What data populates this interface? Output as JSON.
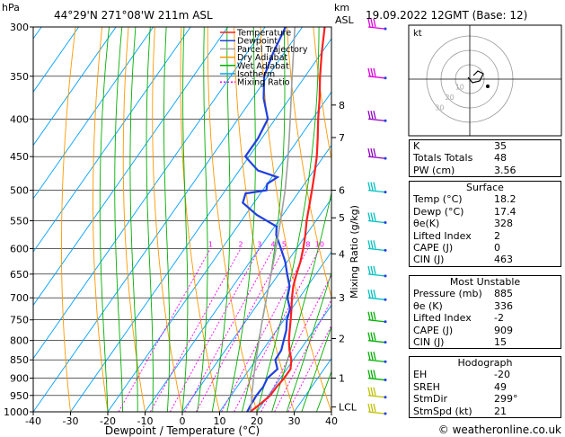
{
  "header": {
    "location": "44°29'N  271°08'W  211m  ASL",
    "datetime": "19.09.2022  12GMT  (Base: 12)",
    "p_unit": "hPa",
    "km_unit": "km",
    "asl_unit": "ASL"
  },
  "footer": {
    "copyright": "© weatheronline.co.uk"
  },
  "hodograph": {
    "kt_label": "kt",
    "ring_labels": [
      "10",
      "20",
      "30"
    ]
  },
  "indices": {
    "rows": [
      {
        "label": "K",
        "value": "35"
      },
      {
        "label": "Totals Totals",
        "value": "48"
      },
      {
        "label": "PW (cm)",
        "value": "3.56"
      }
    ]
  },
  "surface": {
    "title": "Surface",
    "rows": [
      {
        "label": "Temp (°C)",
        "value": "18.2"
      },
      {
        "label": "Dewp (°C)",
        "value": "17.4"
      },
      {
        "label": "θe(K)",
        "value": "328"
      },
      {
        "label": "Lifted Index",
        "value": "2"
      },
      {
        "label": "CAPE (J)",
        "value": "0"
      },
      {
        "label": "CIN (J)",
        "value": "463"
      }
    ]
  },
  "most_unstable": {
    "title": "Most Unstable",
    "rows": [
      {
        "label": "Pressure (mb)",
        "value": "885"
      },
      {
        "label": "θe (K)",
        "value": "336"
      },
      {
        "label": "Lifted Index",
        "value": "-2"
      },
      {
        "label": "CAPE (J)",
        "value": "909"
      },
      {
        "label": "CIN (J)",
        "value": "15"
      }
    ]
  },
  "hodo_params": {
    "title": "Hodograph",
    "rows": [
      {
        "label": "EH",
        "value": "-20"
      },
      {
        "label": "SREH",
        "value": "49"
      },
      {
        "label": "StmDir",
        "value": "299°"
      },
      {
        "label": "StmSpd (kt)",
        "value": "21"
      }
    ]
  },
  "colors": {
    "temperature": "#ff2020",
    "dewpoint": "#2040e0",
    "parcel": "#a0a0a0",
    "dry_adiabat": "#ff9900",
    "wet_adiabat": "#00b000",
    "isotherm": "#00a0ff",
    "mixing_ratio": "#ff00ff"
  },
  "chart_data": {
    "type": "line",
    "xlabel": "Dewpoint / Temperature (°C)",
    "ylabel_right": "Mixing Ratio (g/kg)",
    "x_ticks": [
      "-40",
      "-30",
      "-20",
      "-10",
      "0",
      "10",
      "20",
      "30",
      "40"
    ],
    "p_ticks": [
      "300",
      "350",
      "400",
      "450",
      "500",
      "550",
      "600",
      "650",
      "700",
      "750",
      "800",
      "850",
      "900",
      "950",
      "1000"
    ],
    "km_ticks": [
      "8",
      "7",
      "6",
      "5",
      "4",
      "3",
      "2",
      "1",
      "LCL"
    ],
    "mixing_ratio_labels": [
      "1",
      "2",
      "3",
      "4",
      "5",
      "8",
      "10",
      "16",
      "20",
      "25"
    ],
    "xlim": [
      -40,
      40
    ],
    "plim": [
      1000,
      300
    ],
    "legend": [
      "Temperature",
      "Dewpoint",
      "Parcel Trajectory",
      "Dry Adiabat",
      "Wet Adiabat",
      "Isotherm",
      "Mixing Ratio"
    ],
    "legend_position": "top-right",
    "series": [
      {
        "name": "Temperature",
        "points": [
          [
            1000,
            18.2
          ],
          [
            975,
            19.5
          ],
          [
            950,
            20.5
          ],
          [
            925,
            20.6
          ],
          [
            900,
            21.0
          ],
          [
            875,
            21.0
          ],
          [
            850,
            19.5
          ],
          [
            825,
            17.2
          ],
          [
            800,
            15.2
          ],
          [
            775,
            13.5
          ],
          [
            750,
            11.8
          ],
          [
            725,
            10.0
          ],
          [
            700,
            8.0
          ],
          [
            675,
            6.2
          ],
          [
            650,
            4.8
          ],
          [
            625,
            3.5
          ],
          [
            600,
            1.8
          ],
          [
            575,
            -0.2
          ],
          [
            550,
            -2.5
          ],
          [
            525,
            -4.6
          ],
          [
            500,
            -6.8
          ],
          [
            475,
            -9.2
          ],
          [
            450,
            -11.8
          ],
          [
            425,
            -15.0
          ],
          [
            400,
            -18.5
          ],
          [
            375,
            -22.0
          ],
          [
            350,
            -26.0
          ],
          [
            325,
            -30.0
          ],
          [
            300,
            -34.0
          ]
        ]
      },
      {
        "name": "Dewpoint",
        "points": [
          [
            1000,
            17.4
          ],
          [
            975,
            17.0
          ],
          [
            950,
            16.8
          ],
          [
            925,
            17.0
          ],
          [
            900,
            16.5
          ],
          [
            875,
            17.5
          ],
          [
            850,
            15.2
          ],
          [
            825,
            15.0
          ],
          [
            800,
            13.8
          ],
          [
            775,
            12.6
          ],
          [
            750,
            10.8
          ],
          [
            725,
            9.6
          ],
          [
            700,
            6.8
          ],
          [
            675,
            5.2
          ],
          [
            650,
            2.3
          ],
          [
            625,
            -0.6
          ],
          [
            600,
            -4.2
          ],
          [
            575,
            -8.0
          ],
          [
            560,
            -9.5
          ],
          [
            540,
            -17.0
          ],
          [
            520,
            -23.0
          ],
          [
            505,
            -24.0
          ],
          [
            500,
            -19.0
          ],
          [
            490,
            -20.0
          ],
          [
            480,
            -18.5
          ],
          [
            470,
            -25.0
          ],
          [
            450,
            -31.0
          ],
          [
            425,
            -31.0
          ],
          [
            400,
            -32.0
          ],
          [
            375,
            -37.0
          ],
          [
            350,
            -41.0
          ],
          [
            325,
            -43.0
          ],
          [
            300,
            -44.5
          ]
        ]
      },
      {
        "name": "Parcel Trajectory",
        "points": [
          [
            1000,
            18.2
          ],
          [
            975,
            17.0
          ],
          [
            950,
            15.5
          ],
          [
            925,
            14.2
          ],
          [
            900,
            12.8
          ],
          [
            850,
            10.0
          ],
          [
            800,
            7.2
          ],
          [
            750,
            4.2
          ],
          [
            700,
            1.2
          ],
          [
            650,
            -2.0
          ],
          [
            600,
            -5.5
          ],
          [
            550,
            -9.5
          ],
          [
            500,
            -14.0
          ],
          [
            450,
            -19.5
          ],
          [
            400,
            -26.0
          ],
          [
            350,
            -33.5
          ],
          [
            300,
            -42.0
          ]
        ]
      }
    ],
    "wind_barbs_pressure": [
      300,
      350,
      400,
      450,
      500,
      550,
      600,
      650,
      700,
      750,
      800,
      850,
      900,
      950,
      1000
    ]
  }
}
